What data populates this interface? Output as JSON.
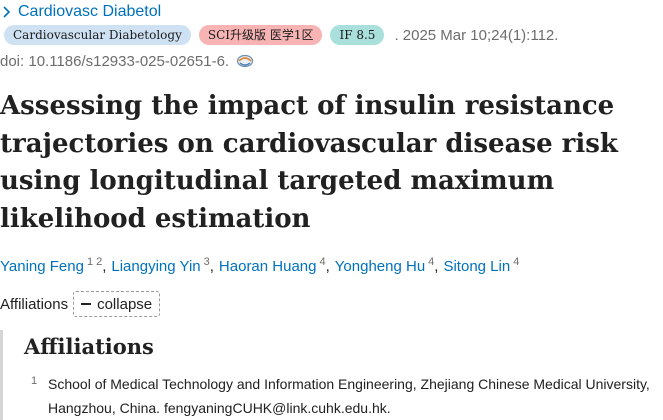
{
  "journal": {
    "name": "Cardiovasc Diabetol"
  },
  "badges": {
    "journal_full": "Cardiovascular Diabetology",
    "sci": "SCI升级版 医学1区",
    "impact_factor": "IF 8.5"
  },
  "citation": {
    "date_volume": ". 2025 Mar 10;24(1):112.",
    "doi": "doi: 10.1186/s12933-025-02651-6."
  },
  "article": {
    "title": "Assessing the impact of insulin resistance trajectories on cardiovascular disease risk using longitudinal targeted maximum likelihood estimation"
  },
  "authors": [
    {
      "name": "Yaning Feng",
      "affils": [
        "1",
        "2"
      ]
    },
    {
      "name": "Liangying Yin",
      "affils": [
        "3"
      ]
    },
    {
      "name": "Haoran Huang",
      "affils": [
        "4"
      ]
    },
    {
      "name": "Yongheng Hu",
      "affils": [
        "4"
      ]
    },
    {
      "name": "Sitong Lin",
      "affils": [
        "4"
      ]
    }
  ],
  "affiliations": {
    "label": "Affiliations",
    "collapse_label": "collapse",
    "heading": "Affiliations",
    "items": [
      {
        "number": "1",
        "text": "School of Medical Technology and Information Engineering, Zhejiang Chinese Medical University, Hangzhou, China. fengyaningCUHK@link.cuhk.edu.hk."
      }
    ]
  },
  "icons": {
    "journal_chevron": "chevron-right-icon",
    "doi_icon": "full-text-link-icon"
  },
  "colors": {
    "link": "#0071bc",
    "journal_badge": "#cfe2f3",
    "sci_badge": "#f8b4b4",
    "if_badge": "#a9e0dc"
  }
}
